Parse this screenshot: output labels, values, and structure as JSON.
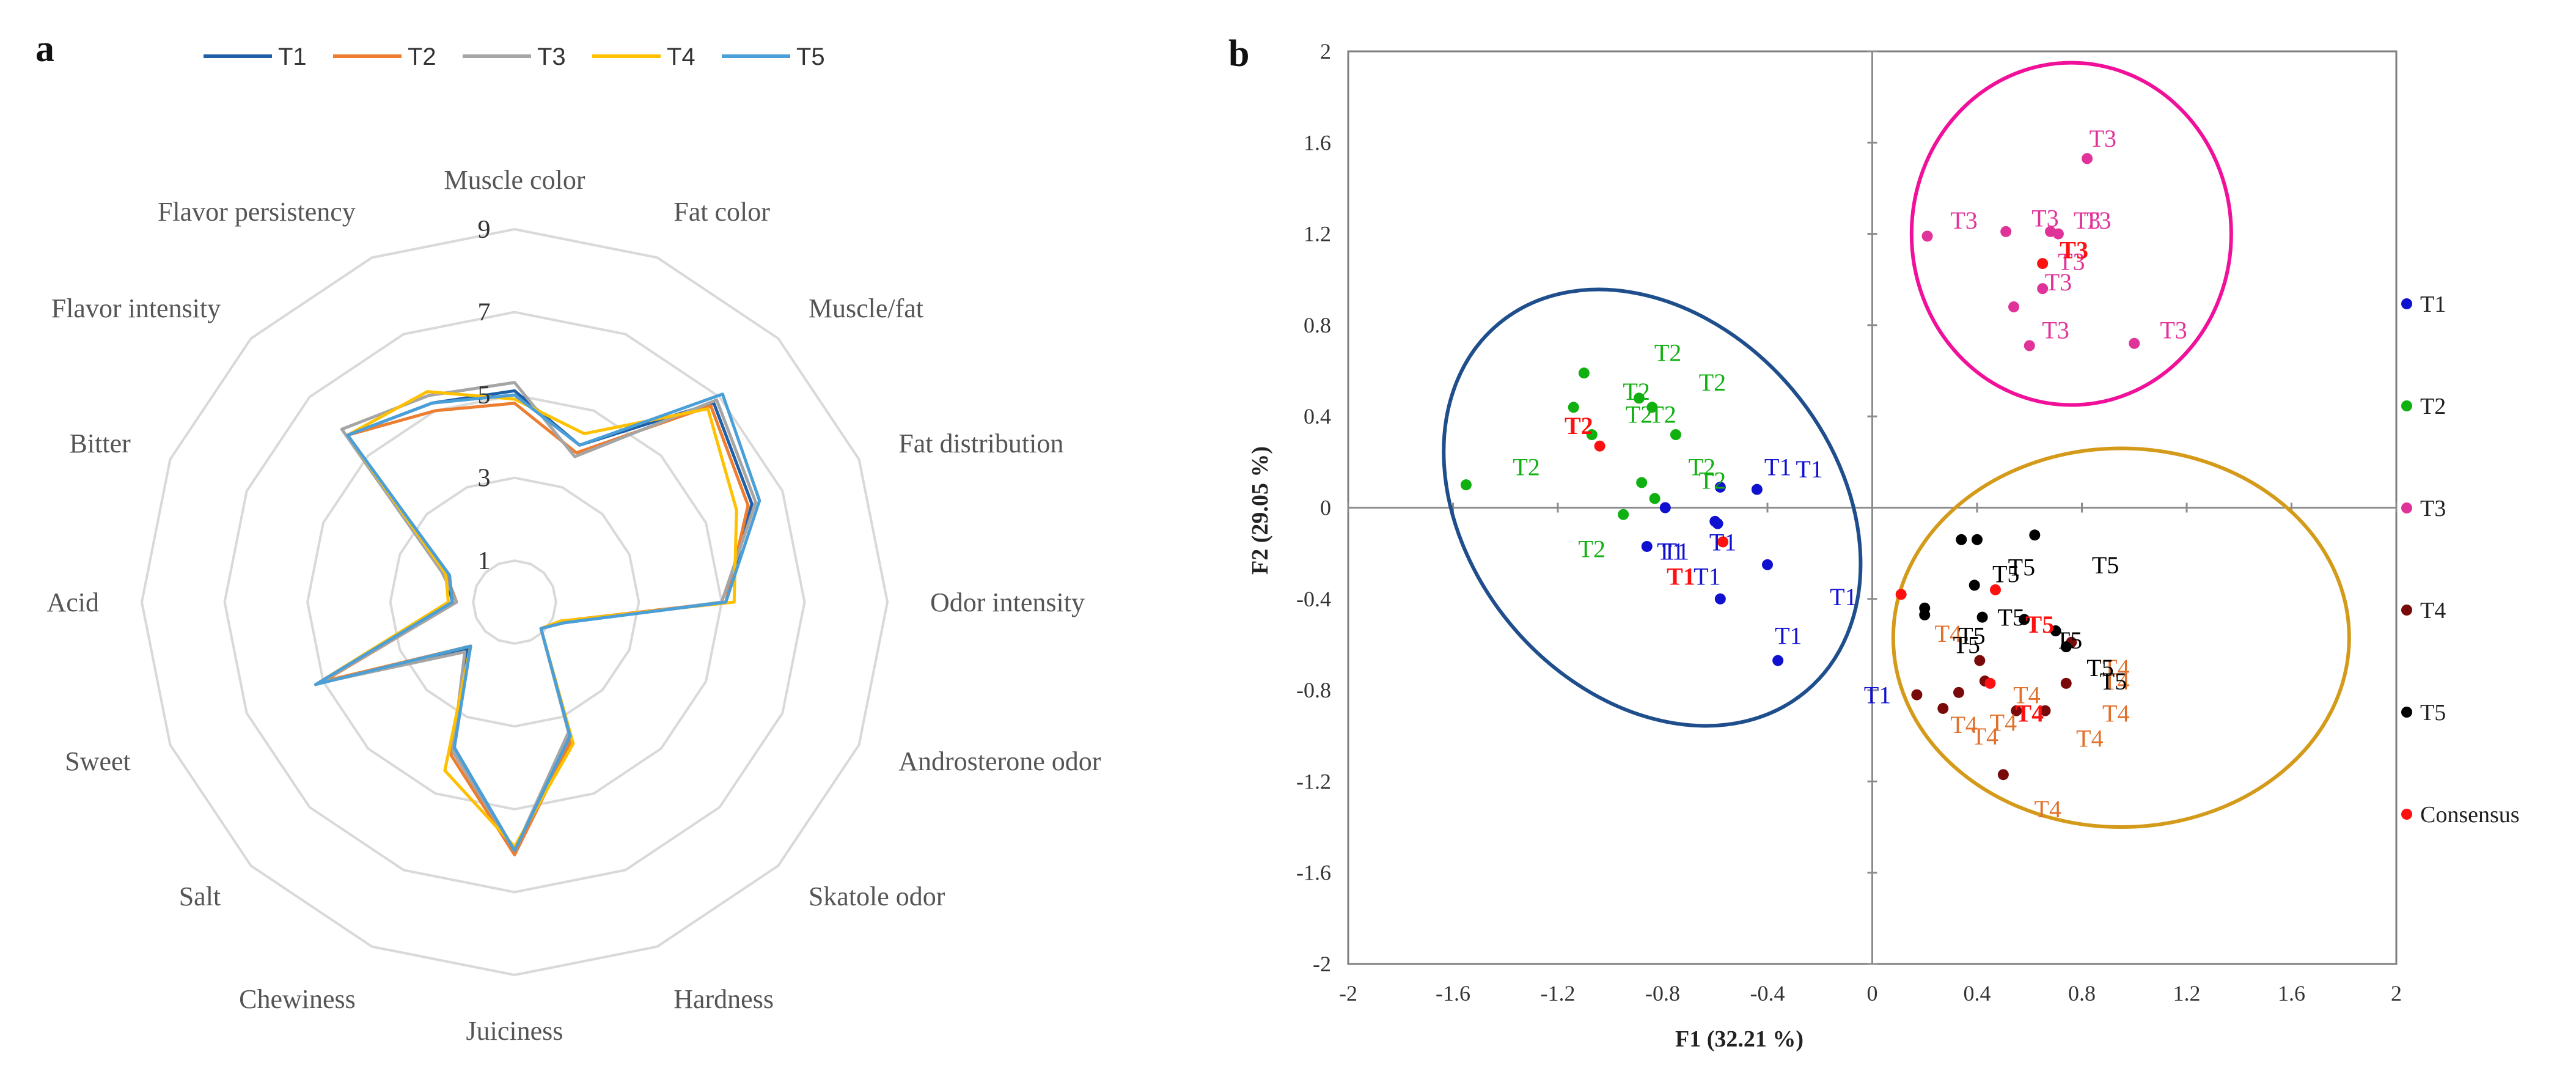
{
  "colors": {
    "T1": "#1F5FA8",
    "T2": "#ED7D31",
    "T3": "#A5A5A5",
    "T4": "#FFC000",
    "T5": "#4A9FD8",
    "grid": "#D9D9D9",
    "scatter_T1": "#1010D0",
    "scatter_T2": "#10B010",
    "scatter_T3": "#E0339A",
    "scatter_T4": "#7A0A0A",
    "scatter_T4_label": "#E0702A",
    "scatter_T5": "#000000",
    "scatter_consensus": "#FF1010",
    "ellipse_blue": "#1F4E8C",
    "ellipse_pink": "#F0109A",
    "ellipse_gold": "#D49A1A"
  },
  "chart_data": [
    {
      "id": "panel-a",
      "panel_label": "a",
      "type": "radar",
      "axes": [
        "Muscle color",
        "Fat color",
        "Muscle/fat",
        "Fat distribution",
        "Odor intensity",
        "Androsterone odor",
        "Skatole odor",
        "Hardness",
        "Juiciness",
        "Chewiness",
        "Salt",
        "Sweet",
        "Acid",
        "Bitter",
        "Flavor intensity",
        "Flavor persistency"
      ],
      "rlim": [
        0,
        9
      ],
      "ticks": [
        1,
        3,
        5,
        7,
        9
      ],
      "tick_labels": [
        "1",
        "3",
        "5",
        "7",
        "9"
      ],
      "legend": [
        "T1",
        "T2",
        "T3",
        "T4",
        "T5"
      ],
      "legend_position": "top",
      "series": [
        {
          "name": "T1",
          "values": [
            5.1,
            4.1,
            6.8,
            6.2,
            5.1,
            1.3,
            0.9,
            3.5,
            6.0,
            3.8,
            1.6,
            5.1,
            1.5,
            1.8,
            5.7,
            5.2
          ]
        },
        {
          "name": "T2",
          "values": [
            4.8,
            3.9,
            6.7,
            6.1,
            5.1,
            1.2,
            0.9,
            3.6,
            6.1,
            4.0,
            1.5,
            5.0,
            1.4,
            1.8,
            5.7,
            5.0
          ]
        },
        {
          "name": "T3",
          "values": [
            5.3,
            3.8,
            6.9,
            6.3,
            5.0,
            1.3,
            0.9,
            3.4,
            6.0,
            3.9,
            1.7,
            5.1,
            1.4,
            1.9,
            5.9,
            5.4
          ]
        },
        {
          "name": "T4",
          "values": [
            4.9,
            4.4,
            6.6,
            5.8,
            5.3,
            1.2,
            0.9,
            3.7,
            5.9,
            4.4,
            1.5,
            5.2,
            1.6,
            1.8,
            5.7,
            5.5
          ]
        },
        {
          "name": "T5",
          "values": [
            5.0,
            4.1,
            7.1,
            6.4,
            5.1,
            1.3,
            0.9,
            3.5,
            6.0,
            3.8,
            1.5,
            5.2,
            1.5,
            1.7,
            5.7,
            5.2
          ]
        }
      ]
    },
    {
      "id": "panel-b",
      "panel_label": "b",
      "type": "scatter",
      "xlabel": "F1 (32.21 %)",
      "ylabel": "F2 (29.05 %)",
      "xlim": [
        -2,
        2
      ],
      "ylim": [
        -2,
        2
      ],
      "xticks": [
        -2,
        -1.6,
        -1.2,
        -0.8,
        -0.4,
        0,
        0.4,
        0.8,
        1.2,
        1.6,
        2
      ],
      "xtick_labels": [
        "-2",
        "-1.6",
        "-1.2",
        "-0.8",
        "-0.4",
        "0",
        "0.4",
        "0.8",
        "1.2",
        "1.6",
        "2"
      ],
      "yticks": [
        -2,
        -1.6,
        -1.2,
        -0.8,
        -0.4,
        0,
        0.4,
        0.8,
        1.2,
        1.6,
        2
      ],
      "ytick_labels": [
        "-2",
        "-1.6",
        "-1.2",
        "-0.8",
        "-0.4",
        "0",
        "0.4",
        "0.8",
        "1.2",
        "1.6",
        "2"
      ],
      "legend": [
        "T1",
        "T2",
        "T3",
        "T4",
        "T5",
        "Consensus"
      ],
      "legend_position": "right",
      "ellipses": [
        {
          "name": "ellipse-T1-T2",
          "center": [
            -0.84,
            0.0
          ],
          "rx": 0.7,
          "ry": 1.05,
          "rotation_deg": -40,
          "color_key": "ellipse_blue"
        },
        {
          "name": "ellipse-T3",
          "center": [
            0.76,
            1.2
          ],
          "rx": 0.61,
          "ry": 0.75,
          "rotation_deg": 0,
          "color_key": "ellipse_pink"
        },
        {
          "name": "ellipse-T4-T5",
          "center": [
            0.95,
            -0.57
          ],
          "rx": 0.87,
          "ry": 0.83,
          "rotation_deg": 0,
          "color_key": "ellipse_gold"
        }
      ],
      "series": [
        {
          "name": "T1",
          "points": [
            [
              -0.44,
              0.08
            ],
            [
              -0.59,
              -0.07
            ],
            [
              -0.86,
              -0.17
            ],
            [
              -0.79,
              0.0
            ],
            [
              -0.4,
              -0.25
            ],
            [
              -0.58,
              -0.4
            ],
            [
              -0.36,
              -0.67
            ],
            [
              -0.6,
              -0.06
            ],
            [
              -0.58,
              0.09
            ]
          ]
        },
        {
          "name": "T2",
          "points": [
            [
              -1.1,
              0.59
            ],
            [
              -1.14,
              0.44
            ],
            [
              -0.89,
              0.48
            ],
            [
              -0.84,
              0.44
            ],
            [
              -0.75,
              0.32
            ],
            [
              -1.07,
              0.32
            ],
            [
              -0.88,
              0.11
            ],
            [
              -0.83,
              0.04
            ],
            [
              -0.95,
              -0.03
            ],
            [
              -1.55,
              0.1
            ]
          ]
        },
        {
          "name": "T3",
          "points": [
            [
              0.82,
              1.53
            ],
            [
              0.21,
              1.19
            ],
            [
              0.51,
              1.21
            ],
            [
              0.68,
              1.21
            ],
            [
              0.71,
              1.2
            ],
            [
              0.65,
              0.96
            ],
            [
              0.54,
              0.88
            ],
            [
              0.6,
              0.71
            ],
            [
              1.0,
              0.72
            ]
          ]
        },
        {
          "name": "T4",
          "points": [
            [
              0.17,
              -0.82
            ],
            [
              0.27,
              -0.88
            ],
            [
              0.33,
              -0.81
            ],
            [
              0.41,
              -0.67
            ],
            [
              0.43,
              -0.76
            ],
            [
              0.55,
              -0.89
            ],
            [
              0.66,
              -0.89
            ],
            [
              0.76,
              -0.59
            ],
            [
              0.74,
              -0.77
            ],
            [
              0.5,
              -1.17
            ]
          ]
        },
        {
          "name": "T5",
          "points": [
            [
              0.34,
              -0.14
            ],
            [
              0.4,
              -0.14
            ],
            [
              0.62,
              -0.12
            ],
            [
              0.39,
              -0.34
            ],
            [
              0.2,
              -0.44
            ],
            [
              0.2,
              -0.47
            ],
            [
              0.42,
              -0.48
            ],
            [
              0.58,
              -0.49
            ],
            [
              0.7,
              -0.54
            ],
            [
              0.74,
              -0.61
            ]
          ]
        },
        {
          "name": "Consensus",
          "points": [
            [
              -1.04,
              0.27
            ],
            [
              -0.57,
              -0.15
            ],
            [
              0.65,
              1.07
            ],
            [
              0.47,
              -0.36
            ],
            [
              0.11,
              -0.38
            ],
            [
              0.45,
              -0.77
            ]
          ]
        }
      ],
      "annotations": [
        {
          "text": "T1",
          "x": -0.36,
          "y": 0.18,
          "group": "T1"
        },
        {
          "text": "T1",
          "x": -0.24,
          "y": 0.17,
          "group": "T1"
        },
        {
          "text": "T1",
          "x": -0.75,
          "y": -0.19,
          "group": "T1"
        },
        {
          "text": "T1",
          "x": -0.77,
          "y": -0.19,
          "group": "T1"
        },
        {
          "text": "T1",
          "x": -0.57,
          "y": -0.15,
          "group": "T1"
        },
        {
          "text": "T1",
          "x": -0.63,
          "y": -0.3,
          "group": "T1"
        },
        {
          "text": "T1",
          "x": -0.11,
          "y": -0.39,
          "group": "T1"
        },
        {
          "text": "T1",
          "x": -0.32,
          "y": -0.56,
          "group": "T1"
        },
        {
          "text": "T1",
          "x": 0.02,
          "y": -0.82,
          "group": "T1"
        },
        {
          "text": "T1",
          "x": -0.73,
          "y": -0.3,
          "group": "Consensus",
          "bold": true
        },
        {
          "text": "T2",
          "x": -0.78,
          "y": 0.68,
          "group": "T2"
        },
        {
          "text": "T2",
          "x": -0.61,
          "y": 0.55,
          "group": "T2"
        },
        {
          "text": "T2",
          "x": -0.9,
          "y": 0.51,
          "group": "T2"
        },
        {
          "text": "T2",
          "x": -0.89,
          "y": 0.41,
          "group": "T2"
        },
        {
          "text": "T2",
          "x": -0.8,
          "y": 0.41,
          "group": "T2"
        },
        {
          "text": "T2",
          "x": -1.32,
          "y": 0.18,
          "group": "T2"
        },
        {
          "text": "T2",
          "x": -0.65,
          "y": 0.18,
          "group": "T2"
        },
        {
          "text": "T2",
          "x": -0.61,
          "y": 0.12,
          "group": "T2"
        },
        {
          "text": "T2",
          "x": -1.07,
          "y": -0.18,
          "group": "T2"
        },
        {
          "text": "T2",
          "x": -1.12,
          "y": 0.36,
          "group": "Consensus",
          "bold": true
        },
        {
          "text": "T3",
          "x": 0.88,
          "y": 1.62,
          "group": "T3"
        },
        {
          "text": "T3",
          "x": 0.35,
          "y": 1.26,
          "group": "T3"
        },
        {
          "text": "T3",
          "x": 0.66,
          "y": 1.27,
          "group": "T3"
        },
        {
          "text": "T3",
          "x": 0.82,
          "y": 1.26,
          "group": "T3"
        },
        {
          "text": "T3",
          "x": 0.86,
          "y": 1.26,
          "group": "T3"
        },
        {
          "text": "T3",
          "x": 0.76,
          "y": 1.08,
          "group": "T3"
        },
        {
          "text": "T3",
          "x": 0.71,
          "y": 0.99,
          "group": "T3"
        },
        {
          "text": "T3",
          "x": 0.7,
          "y": 0.78,
          "group": "T3"
        },
        {
          "text": "T3",
          "x": 1.15,
          "y": 0.78,
          "group": "T3"
        },
        {
          "text": "T3",
          "x": 0.77,
          "y": 1.13,
          "group": "Consensus",
          "bold": true
        },
        {
          "text": "T4",
          "x": 0.29,
          "y": -0.55,
          "group": "T4"
        },
        {
          "text": "T4",
          "x": 0.93,
          "y": -0.7,
          "group": "T4"
        },
        {
          "text": "T4",
          "x": 0.93,
          "y": -0.76,
          "group": "T4"
        },
        {
          "text": "T4",
          "x": 0.59,
          "y": -0.82,
          "group": "T4"
        },
        {
          "text": "T4",
          "x": 0.93,
          "y": -0.9,
          "group": "T4"
        },
        {
          "text": "T4",
          "x": 0.35,
          "y": -0.95,
          "group": "T4"
        },
        {
          "text": "T4",
          "x": 0.5,
          "y": -0.94,
          "group": "T4"
        },
        {
          "text": "T4",
          "x": 0.43,
          "y": -1.0,
          "group": "T4"
        },
        {
          "text": "T4",
          "x": 0.83,
          "y": -1.01,
          "group": "T4"
        },
        {
          "text": "T4",
          "x": 0.67,
          "y": -1.32,
          "group": "T4"
        },
        {
          "text": "T4",
          "x": 0.6,
          "y": -0.9,
          "group": "Consensus",
          "bold": true
        },
        {
          "text": "T5",
          "x": 0.89,
          "y": -0.25,
          "group": "T5"
        },
        {
          "text": "T5",
          "x": 0.57,
          "y": -0.26,
          "group": "T5"
        },
        {
          "text": "T5",
          "x": 0.51,
          "y": -0.29,
          "group": "T5"
        },
        {
          "text": "T5",
          "x": 0.53,
          "y": -0.48,
          "group": "T5"
        },
        {
          "text": "T5",
          "x": 0.38,
          "y": -0.56,
          "group": "T5"
        },
        {
          "text": "T5",
          "x": 0.36,
          "y": -0.6,
          "group": "T5"
        },
        {
          "text": "T5",
          "x": 0.75,
          "y": -0.58,
          "group": "T5"
        },
        {
          "text": "T5",
          "x": 0.87,
          "y": -0.7,
          "group": "T5"
        },
        {
          "text": "T5",
          "x": 0.92,
          "y": -0.76,
          "group": "T5"
        },
        {
          "text": "T5",
          "x": 0.64,
          "y": -0.51,
          "group": "Consensus",
          "bold": true
        }
      ]
    }
  ]
}
